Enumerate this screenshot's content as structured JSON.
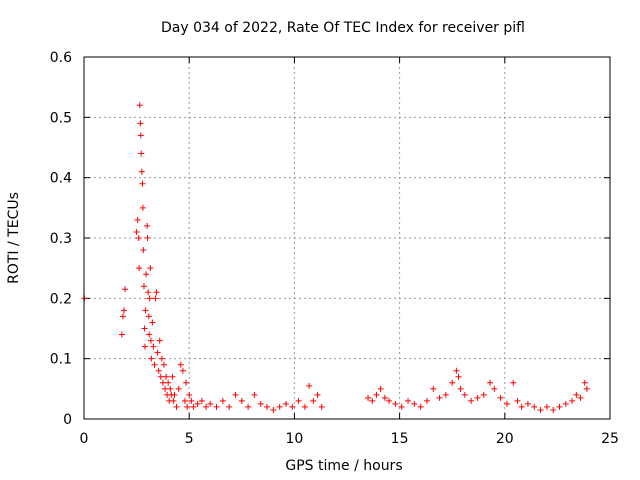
{
  "chart_data": {
    "type": "scatter",
    "title": "Day 034 of 2022, Rate Of TEC Index for receiver pifl",
    "xlabel": "GPS time / hours",
    "ylabel": "ROTI / TECUs",
    "xlim": [
      0,
      25
    ],
    "ylim": [
      0,
      0.6
    ],
    "xticks": [
      "0",
      "5",
      "10",
      "15",
      "20",
      "25"
    ],
    "yticks": [
      "0",
      "0.1",
      "0.2",
      "0.3",
      "0.4",
      "0.5",
      "0.6"
    ],
    "grid": true,
    "marker": "+",
    "color": "#ff0000",
    "series": [
      {
        "x": [
          0.02,
          1.8,
          1.85,
          1.9,
          1.95,
          2.5,
          2.55,
          2.6,
          2.62,
          2.65,
          2.68,
          2.7,
          2.72,
          2.75,
          2.78,
          2.8,
          2.82,
          2.85,
          2.88,
          2.9,
          2.92,
          2.95,
          3.0,
          3.02,
          3.05,
          3.08,
          3.1,
          3.12,
          3.15,
          3.18,
          3.2,
          3.25,
          3.3,
          3.35,
          3.4,
          3.45,
          3.5,
          3.55,
          3.6,
          3.65,
          3.7,
          3.75,
          3.8,
          3.85,
          3.9,
          3.95,
          4.0,
          4.05,
          4.1,
          4.15,
          4.2,
          4.25,
          4.3,
          4.4,
          4.5,
          4.6,
          4.7,
          4.8,
          4.85,
          4.9,
          5.0,
          5.1,
          5.2,
          5.4,
          5.6,
          5.8,
          6.0,
          6.3,
          6.6,
          6.9,
          7.2,
          7.5,
          7.8,
          8.1,
          8.4,
          8.7,
          9.0,
          9.3,
          9.6,
          9.9,
          10.2,
          10.5,
          10.7,
          10.9,
          11.1,
          11.3,
          13.5,
          13.7,
          13.9,
          14.1,
          14.3,
          14.5,
          14.8,
          15.1,
          15.4,
          15.7,
          16.0,
          16.3,
          16.6,
          16.9,
          17.2,
          17.5,
          17.7,
          17.8,
          17.9,
          18.1,
          18.4,
          18.7,
          19.0,
          19.3,
          19.5,
          19.8,
          20.1,
          20.4,
          20.6,
          20.8,
          21.1,
          21.4,
          21.7,
          22.0,
          22.3,
          22.6,
          22.9,
          23.2,
          23.4,
          23.6,
          23.8,
          23.9
        ],
        "y": [
          0.2,
          0.14,
          0.17,
          0.18,
          0.215,
          0.31,
          0.33,
          0.3,
          0.25,
          0.52,
          0.49,
          0.47,
          0.44,
          0.41,
          0.39,
          0.35,
          0.28,
          0.22,
          0.15,
          0.12,
          0.18,
          0.24,
          0.32,
          0.3,
          0.21,
          0.17,
          0.14,
          0.2,
          0.25,
          0.13,
          0.1,
          0.16,
          0.12,
          0.09,
          0.2,
          0.21,
          0.11,
          0.08,
          0.13,
          0.07,
          0.1,
          0.06,
          0.09,
          0.05,
          0.07,
          0.04,
          0.06,
          0.03,
          0.05,
          0.04,
          0.07,
          0.03,
          0.04,
          0.02,
          0.05,
          0.09,
          0.08,
          0.03,
          0.06,
          0.02,
          0.04,
          0.03,
          0.02,
          0.025,
          0.03,
          0.02,
          0.025,
          0.02,
          0.03,
          0.02,
          0.04,
          0.03,
          0.02,
          0.04,
          0.025,
          0.02,
          0.015,
          0.02,
          0.025,
          0.02,
          0.03,
          0.02,
          0.055,
          0.03,
          0.04,
          0.02,
          0.035,
          0.03,
          0.04,
          0.05,
          0.035,
          0.03,
          0.025,
          0.02,
          0.03,
          0.025,
          0.02,
          0.03,
          0.05,
          0.035,
          0.04,
          0.06,
          0.08,
          0.07,
          0.05,
          0.04,
          0.03,
          0.035,
          0.04,
          0.06,
          0.05,
          0.035,
          0.025,
          0.06,
          0.03,
          0.02,
          0.025,
          0.02,
          0.015,
          0.02,
          0.015,
          0.02,
          0.025,
          0.03,
          0.04,
          0.035,
          0.06,
          0.05
        ]
      }
    ]
  }
}
